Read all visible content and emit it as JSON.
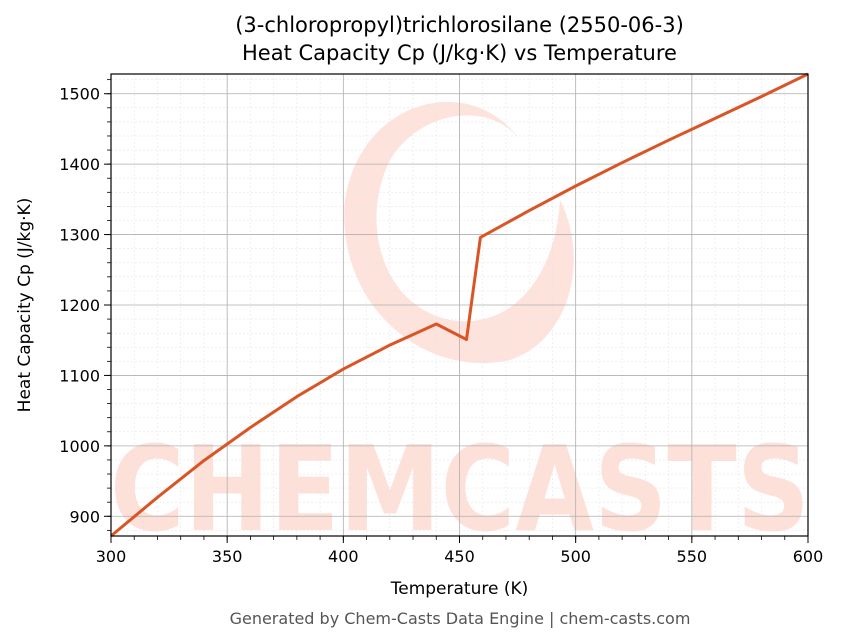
{
  "chart_data": {
    "type": "line",
    "title": "(3-chloropropyl)trichlorosilane (2550-06-3)",
    "subtitle": "Heat Capacity Cp (J/kg·K) vs Temperature",
    "xlabel": "Temperature (K)",
    "ylabel": "Heat Capacity Cp (J/kg·K)",
    "xlim": [
      300,
      600
    ],
    "ylim": [
      872,
      1528
    ],
    "xticks": [
      300,
      350,
      400,
      450,
      500,
      550,
      600
    ],
    "yticks": [
      900,
      1000,
      1100,
      1200,
      1300,
      1400,
      1500
    ],
    "grid": true,
    "series": [
      {
        "color": "#d95525",
        "x": [
          300,
          320,
          340,
          360,
          380,
          400,
          420,
          440,
          453,
          459,
          480,
          500,
          520,
          540,
          560,
          580,
          600
        ],
        "y": [
          872,
          927,
          979,
          1026,
          1070,
          1109,
          1143,
          1173,
          1151,
          1296,
          1334,
          1369,
          1402,
          1434,
          1465,
          1496,
          1528
        ]
      }
    ]
  },
  "footer": "Generated by Chem-Casts Data Engine | chem-casts.com",
  "watermark": "CHEMCASTS",
  "colors": {
    "line": "#d95525",
    "watermark": "#fde0d8",
    "grid_major": "#b0b0b0",
    "grid_minor": "#e6e6e6"
  }
}
